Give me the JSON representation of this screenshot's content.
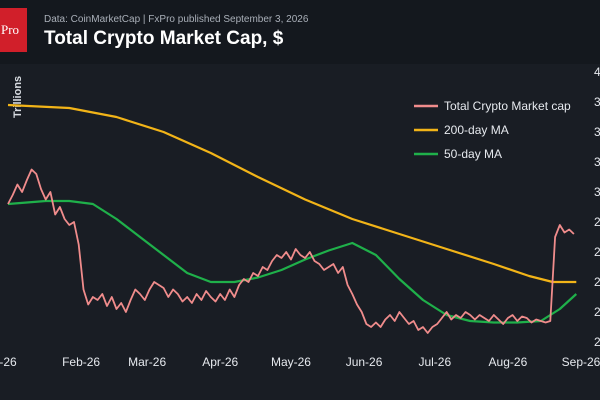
{
  "header": {
    "logo_text": "Pro",
    "source": "Data: CoinMarketCap  |  FxPro published September 3, 2026",
    "title": "Total Crypto Market Cap, $"
  },
  "colors": {
    "background": "#191d24",
    "header_bg": "#14181e",
    "logo": "#d11f2a",
    "market_cap": "#f08c8c",
    "ma200": "#f2b418",
    "ma50": "#1fb04a"
  },
  "chart_data": {
    "type": "line",
    "title": "Total Crypto Market Cap, $",
    "ylabel": "Trillions",
    "xlabel": "",
    "x_tick_labels": [
      "-26",
      "Feb-26",
      "Mar-26",
      "Apr-26",
      "May-26",
      "Jun-26",
      "Jul-26",
      "Aug-26",
      "Sep-26"
    ],
    "x_tick_days": [
      14,
      45,
      73,
      104,
      134,
      165,
      195,
      226,
      257
    ],
    "y_tick_labels": [
      "4",
      "3",
      "3",
      "3",
      "3",
      "2",
      "2",
      "2",
      "2",
      "2"
    ],
    "y_tick_values": [
      4.0,
      3.8,
      3.6,
      3.4,
      3.2,
      3.0,
      2.8,
      2.6,
      2.4,
      2.2
    ],
    "ylim": [
      2.2,
      4.0
    ],
    "xlim": [
      14,
      257
    ],
    "legend_position": "top-right",
    "grid": false,
    "series": [
      {
        "name": "Total Crypto Market cap",
        "color": "#f08c8c",
        "x": [
          14,
          16,
          18,
          20,
          22,
          24,
          26,
          28,
          30,
          32,
          34,
          36,
          38,
          40,
          42,
          44,
          46,
          48,
          50,
          52,
          54,
          56,
          58,
          60,
          62,
          64,
          66,
          68,
          70,
          72,
          74,
          76,
          78,
          80,
          82,
          84,
          86,
          88,
          90,
          92,
          94,
          96,
          98,
          100,
          102,
          104,
          106,
          108,
          110,
          112,
          114,
          116,
          118,
          120,
          122,
          124,
          126,
          128,
          130,
          132,
          134,
          136,
          138,
          140,
          142,
          144,
          146,
          148,
          150,
          152,
          154,
          156,
          158,
          160,
          162,
          164,
          166,
          168,
          170,
          172,
          174,
          176,
          178,
          180,
          182,
          184,
          186,
          188,
          190,
          192,
          194,
          196,
          198,
          200,
          202,
          204,
          206,
          208,
          210,
          212,
          214,
          216,
          218,
          220,
          222,
          224,
          226,
          228,
          230,
          232,
          234,
          236,
          238,
          240,
          242,
          244,
          246,
          248,
          250,
          252,
          254
        ],
        "values": [
          3.12,
          3.18,
          3.25,
          3.2,
          3.28,
          3.35,
          3.32,
          3.22,
          3.15,
          3.2,
          3.05,
          3.1,
          3.02,
          2.98,
          3.0,
          2.85,
          2.55,
          2.45,
          2.5,
          2.48,
          2.52,
          2.44,
          2.5,
          2.42,
          2.46,
          2.4,
          2.48,
          2.55,
          2.52,
          2.48,
          2.55,
          2.6,
          2.58,
          2.56,
          2.5,
          2.55,
          2.52,
          2.47,
          2.5,
          2.46,
          2.52,
          2.48,
          2.54,
          2.5,
          2.47,
          2.52,
          2.48,
          2.55,
          2.5,
          2.58,
          2.62,
          2.6,
          2.66,
          2.64,
          2.7,
          2.68,
          2.74,
          2.78,
          2.76,
          2.8,
          2.75,
          2.82,
          2.78,
          2.76,
          2.8,
          2.74,
          2.72,
          2.68,
          2.7,
          2.72,
          2.66,
          2.7,
          2.58,
          2.52,
          2.45,
          2.4,
          2.32,
          2.3,
          2.33,
          2.3,
          2.35,
          2.38,
          2.34,
          2.4,
          2.36,
          2.32,
          2.34,
          2.28,
          2.3,
          2.26,
          2.3,
          2.32,
          2.36,
          2.4,
          2.35,
          2.38,
          2.36,
          2.4,
          2.38,
          2.35,
          2.38,
          2.36,
          2.34,
          2.38,
          2.35,
          2.32,
          2.36,
          2.38,
          2.34,
          2.37,
          2.36,
          2.33,
          2.35,
          2.34,
          2.33,
          2.34,
          2.9,
          2.98,
          2.93,
          2.95,
          2.92
        ]
      },
      {
        "name": "200-day MA",
        "color": "#f2b418",
        "x": [
          14,
          40,
          60,
          80,
          100,
          120,
          140,
          160,
          180,
          200,
          220,
          235,
          245,
          255
        ],
        "values": [
          3.78,
          3.76,
          3.7,
          3.6,
          3.46,
          3.3,
          3.15,
          3.02,
          2.92,
          2.82,
          2.72,
          2.64,
          2.6,
          2.6
        ]
      },
      {
        "name": "50-day MA",
        "color": "#1fb04a",
        "x": [
          14,
          30,
          40,
          50,
          60,
          70,
          80,
          90,
          100,
          110,
          120,
          130,
          140,
          150,
          160,
          170,
          180,
          190,
          200,
          210,
          220,
          230,
          240,
          248,
          255
        ],
        "values": [
          3.12,
          3.14,
          3.14,
          3.12,
          3.02,
          2.9,
          2.78,
          2.66,
          2.6,
          2.6,
          2.63,
          2.68,
          2.75,
          2.81,
          2.86,
          2.78,
          2.62,
          2.48,
          2.38,
          2.34,
          2.33,
          2.33,
          2.34,
          2.42,
          2.52
        ]
      }
    ]
  }
}
